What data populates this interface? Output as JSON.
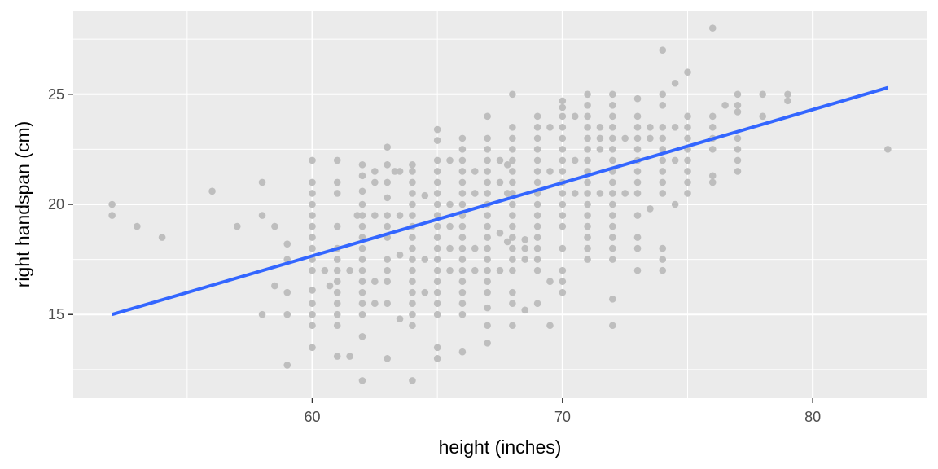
{
  "chart_data": {
    "type": "scatter",
    "title": "",
    "xlabel": "height (inches)",
    "ylabel": "right handspan (cm)",
    "xlim": [
      50.45,
      84.55
    ],
    "ylim": [
      11.2,
      28.8
    ],
    "x_ticks": [
      60,
      70,
      80
    ],
    "x_minor_ticks": [
      55,
      65,
      75
    ],
    "y_ticks": [
      15,
      20,
      25
    ],
    "y_minor_ticks": [
      12.5,
      17.5,
      22.5,
      27.5
    ],
    "grid": true,
    "legend": "none",
    "colors": {
      "panel": "#EBEBEB",
      "grid": "#FFFFFF",
      "points": "#BEBEBE",
      "fit_line": "#3366FF"
    },
    "fit_line": {
      "x": [
        52,
        83
      ],
      "y": [
        15.0,
        25.3
      ]
    },
    "points": [
      [
        52,
        20.0
      ],
      [
        52,
        19.5
      ],
      [
        53,
        19.0
      ],
      [
        54,
        18.5
      ],
      [
        56,
        20.6
      ],
      [
        57,
        19.0
      ],
      [
        58,
        21.0
      ],
      [
        58,
        19.5
      ],
      [
        58,
        15.0
      ],
      [
        58.5,
        19.0
      ],
      [
        58.5,
        16.3
      ],
      [
        59,
        18.2
      ],
      [
        59,
        17.5
      ],
      [
        59,
        16.0
      ],
      [
        59,
        15.0
      ],
      [
        59,
        12.7
      ],
      [
        60,
        22.0
      ],
      [
        60,
        21.0
      ],
      [
        60,
        20.5
      ],
      [
        60,
        20.0
      ],
      [
        60,
        19.5
      ],
      [
        60,
        19.0
      ],
      [
        60,
        18.5
      ],
      [
        60,
        18.0
      ],
      [
        60,
        17.5
      ],
      [
        60,
        17.0
      ],
      [
        60,
        16.1
      ],
      [
        60,
        15.5
      ],
      [
        60,
        15.0
      ],
      [
        60,
        14.5
      ],
      [
        60,
        13.5
      ],
      [
        60.5,
        17.0
      ],
      [
        60.7,
        16.3
      ],
      [
        61,
        22.0
      ],
      [
        61,
        21.0
      ],
      [
        61,
        20.5
      ],
      [
        61,
        19.0
      ],
      [
        61,
        18.0
      ],
      [
        61,
        17.5
      ],
      [
        61,
        17.0
      ],
      [
        61,
        16.5
      ],
      [
        61,
        16.0
      ],
      [
        61,
        15.5
      ],
      [
        61,
        15.0
      ],
      [
        61,
        14.5
      ],
      [
        61,
        13.1
      ],
      [
        61.5,
        17.0
      ],
      [
        61.5,
        13.1
      ],
      [
        61.8,
        19.5
      ],
      [
        62,
        21.8
      ],
      [
        62,
        21.3
      ],
      [
        62,
        20.6
      ],
      [
        62,
        20.0
      ],
      [
        62,
        19.5
      ],
      [
        62,
        19.0
      ],
      [
        62,
        18.5
      ],
      [
        62,
        18.0
      ],
      [
        62,
        17.5
      ],
      [
        62,
        17.0
      ],
      [
        62,
        16.5
      ],
      [
        62,
        16.0
      ],
      [
        62,
        15.5
      ],
      [
        62,
        15.0
      ],
      [
        62,
        14.0
      ],
      [
        62,
        12.0
      ],
      [
        62.5,
        21.5
      ],
      [
        62.5,
        21.0
      ],
      [
        62.5,
        19.5
      ],
      [
        62.5,
        16.5
      ],
      [
        62.5,
        15.5
      ],
      [
        63,
        22.6
      ],
      [
        63,
        21.8
      ],
      [
        63,
        21.0
      ],
      [
        63,
        20.3
      ],
      [
        63,
        19.5
      ],
      [
        63,
        19.0
      ],
      [
        63,
        18.5
      ],
      [
        63,
        17.5
      ],
      [
        63,
        17.0
      ],
      [
        63,
        16.5
      ],
      [
        63,
        15.5
      ],
      [
        63,
        13.0
      ],
      [
        63.3,
        21.5
      ],
      [
        63.5,
        21.5
      ],
      [
        63.5,
        19.5
      ],
      [
        63.5,
        17.7
      ],
      [
        63.5,
        14.8
      ],
      [
        64,
        21.8
      ],
      [
        64,
        21.5
      ],
      [
        64,
        21.0
      ],
      [
        64,
        20.5
      ],
      [
        64,
        20.0
      ],
      [
        64,
        19.5
      ],
      [
        64,
        19.0
      ],
      [
        64,
        18.5
      ],
      [
        64,
        18.0
      ],
      [
        64,
        17.5
      ],
      [
        64,
        17.0
      ],
      [
        64,
        16.5
      ],
      [
        64,
        16.0
      ],
      [
        64,
        15.5
      ],
      [
        64,
        15.0
      ],
      [
        64,
        14.5
      ],
      [
        64,
        12.0
      ],
      [
        64.5,
        20.4
      ],
      [
        64.5,
        17.5
      ],
      [
        64.5,
        16.0
      ],
      [
        65,
        23.4
      ],
      [
        65,
        22.9
      ],
      [
        65,
        22.0
      ],
      [
        65,
        21.5
      ],
      [
        65,
        21.0
      ],
      [
        65,
        20.5
      ],
      [
        65,
        20.0
      ],
      [
        65,
        19.5
      ],
      [
        65,
        19.0
      ],
      [
        65,
        18.5
      ],
      [
        65,
        18.0
      ],
      [
        65,
        17.5
      ],
      [
        65,
        17.0
      ],
      [
        65,
        16.5
      ],
      [
        65,
        16.0
      ],
      [
        65,
        15.5
      ],
      [
        65,
        15.0
      ],
      [
        65,
        13.5
      ],
      [
        65,
        13.0
      ],
      [
        65.5,
        22.0
      ],
      [
        65.5,
        20.0
      ],
      [
        65.5,
        19.0
      ],
      [
        65.5,
        18.0
      ],
      [
        65.5,
        17.0
      ],
      [
        66,
        23.0
      ],
      [
        66,
        22.5
      ],
      [
        66,
        22.0
      ],
      [
        66,
        21.5
      ],
      [
        66,
        21.0
      ],
      [
        66,
        20.5
      ],
      [
        66,
        20.0
      ],
      [
        66,
        19.5
      ],
      [
        66,
        19.0
      ],
      [
        66,
        18.5
      ],
      [
        66,
        18.0
      ],
      [
        66,
        17.5
      ],
      [
        66,
        17.0
      ],
      [
        66,
        16.5
      ],
      [
        66,
        16.0
      ],
      [
        66,
        15.5
      ],
      [
        66,
        15.0
      ],
      [
        66,
        13.3
      ],
      [
        66.5,
        21.5
      ],
      [
        66.5,
        20.5
      ],
      [
        66.5,
        18.0
      ],
      [
        66.5,
        17.0
      ],
      [
        67,
        24.0
      ],
      [
        67,
        23.0
      ],
      [
        67,
        22.5
      ],
      [
        67,
        22.0
      ],
      [
        67,
        21.5
      ],
      [
        67,
        21.0
      ],
      [
        67,
        20.5
      ],
      [
        67,
        20.0
      ],
      [
        67,
        19.5
      ],
      [
        67,
        19.0
      ],
      [
        67,
        18.5
      ],
      [
        67,
        18.0
      ],
      [
        67,
        17.5
      ],
      [
        67,
        17.0
      ],
      [
        67,
        16.5
      ],
      [
        67,
        16.0
      ],
      [
        67,
        15.3
      ],
      [
        67,
        14.5
      ],
      [
        67,
        13.7
      ],
      [
        67.5,
        22.0
      ],
      [
        67.5,
        21.0
      ],
      [
        67.5,
        18.7
      ],
      [
        67.5,
        17.0
      ],
      [
        67.8,
        21.8
      ],
      [
        67.8,
        20.5
      ],
      [
        67.8,
        18.3
      ],
      [
        68,
        25.0
      ],
      [
        68,
        23.5
      ],
      [
        68,
        23.0
      ],
      [
        68,
        22.5
      ],
      [
        68,
        22.0
      ],
      [
        68,
        21.5
      ],
      [
        68,
        21.0
      ],
      [
        68,
        20.5
      ],
      [
        68,
        20.0
      ],
      [
        68,
        19.5
      ],
      [
        68,
        19.0
      ],
      [
        68,
        18.5
      ],
      [
        68,
        18.0
      ],
      [
        68,
        17.5
      ],
      [
        68,
        17.0
      ],
      [
        68,
        16.0
      ],
      [
        68,
        15.5
      ],
      [
        68,
        14.5
      ],
      [
        68.5,
        18.4
      ],
      [
        68.5,
        18.0
      ],
      [
        68.5,
        17.5
      ],
      [
        68.5,
        15.2
      ],
      [
        69,
        24.0
      ],
      [
        69,
        23.5
      ],
      [
        69,
        23.0
      ],
      [
        69,
        22.5
      ],
      [
        69,
        22.0
      ],
      [
        69,
        21.5
      ],
      [
        69,
        21.0
      ],
      [
        69,
        20.5
      ],
      [
        69,
        20.0
      ],
      [
        69,
        19.5
      ],
      [
        69,
        19.0
      ],
      [
        69,
        18.5
      ],
      [
        69,
        18.0
      ],
      [
        69,
        17.5
      ],
      [
        69,
        17.0
      ],
      [
        69,
        15.5
      ],
      [
        69.5,
        23.5
      ],
      [
        69.5,
        21.5
      ],
      [
        69.5,
        16.5
      ],
      [
        69.5,
        14.5
      ],
      [
        70,
        24.7
      ],
      [
        70,
        24.4
      ],
      [
        70,
        24.0
      ],
      [
        70,
        23.5
      ],
      [
        70,
        23.0
      ],
      [
        70,
        22.5
      ],
      [
        70,
        22.0
      ],
      [
        70,
        21.5
      ],
      [
        70,
        21.0
      ],
      [
        70,
        20.5
      ],
      [
        70,
        20.0
      ],
      [
        70,
        19.5
      ],
      [
        70,
        19.0
      ],
      [
        70,
        18.0
      ],
      [
        70,
        17.0
      ],
      [
        70,
        16.5
      ],
      [
        70,
        16.0
      ],
      [
        70.5,
        24.0
      ],
      [
        70.5,
        22.0
      ],
      [
        70.5,
        20.5
      ],
      [
        71,
        25.0
      ],
      [
        71,
        24.5
      ],
      [
        71,
        24.0
      ],
      [
        71,
        23.5
      ],
      [
        71,
        23.0
      ],
      [
        71,
        22.5
      ],
      [
        71,
        22.0
      ],
      [
        71,
        21.5
      ],
      [
        71,
        21.0
      ],
      [
        71,
        20.5
      ],
      [
        71,
        20.0
      ],
      [
        71,
        19.5
      ],
      [
        71,
        19.0
      ],
      [
        71,
        18.5
      ],
      [
        71,
        18.0
      ],
      [
        71,
        17.5
      ],
      [
        71.5,
        23.5
      ],
      [
        71.5,
        23.0
      ],
      [
        71.5,
        22.5
      ],
      [
        71.5,
        20.5
      ],
      [
        72,
        25.0
      ],
      [
        72,
        24.5
      ],
      [
        72,
        24.0
      ],
      [
        72,
        23.5
      ],
      [
        72,
        23.0
      ],
      [
        72,
        22.5
      ],
      [
        72,
        22.0
      ],
      [
        72,
        21.5
      ],
      [
        72,
        21.0
      ],
      [
        72,
        20.5
      ],
      [
        72,
        20.0
      ],
      [
        72,
        19.5
      ],
      [
        72,
        19.0
      ],
      [
        72,
        18.5
      ],
      [
        72,
        18.0
      ],
      [
        72,
        17.5
      ],
      [
        72,
        15.7
      ],
      [
        72,
        14.5
      ],
      [
        72.5,
        23.0
      ],
      [
        72.5,
        20.5
      ],
      [
        73,
        24.8
      ],
      [
        73,
        24.0
      ],
      [
        73,
        23.5
      ],
      [
        73,
        23.0
      ],
      [
        73,
        22.5
      ],
      [
        73,
        22.0
      ],
      [
        73,
        21.5
      ],
      [
        73,
        21.0
      ],
      [
        73,
        20.5
      ],
      [
        73,
        19.5
      ],
      [
        73,
        18.5
      ],
      [
        73,
        18.0
      ],
      [
        73,
        17.0
      ],
      [
        73.5,
        23.5
      ],
      [
        73.5,
        23.0
      ],
      [
        73.5,
        19.8
      ],
      [
        74,
        27.0
      ],
      [
        74,
        25.0
      ],
      [
        74,
        24.5
      ],
      [
        74,
        23.5
      ],
      [
        74,
        23.0
      ],
      [
        74,
        22.5
      ],
      [
        74,
        22.0
      ],
      [
        74,
        21.5
      ],
      [
        74,
        21.0
      ],
      [
        74,
        20.5
      ],
      [
        74,
        18.0
      ],
      [
        74,
        17.5
      ],
      [
        74,
        17.0
      ],
      [
        74.5,
        25.5
      ],
      [
        74.5,
        23.5
      ],
      [
        74.5,
        22.0
      ],
      [
        74.5,
        20.0
      ],
      [
        75,
        26.0
      ],
      [
        75,
        24.0
      ],
      [
        75,
        23.5
      ],
      [
        75,
        23.0
      ],
      [
        75,
        22.5
      ],
      [
        75,
        22.0
      ],
      [
        75,
        21.5
      ],
      [
        75,
        21.0
      ],
      [
        75,
        20.5
      ],
      [
        76,
        28.0
      ],
      [
        76,
        24.0
      ],
      [
        76,
        23.5
      ],
      [
        76,
        23.0
      ],
      [
        76,
        22.5
      ],
      [
        76,
        21.3
      ],
      [
        76,
        21.0
      ],
      [
        76.5,
        24.5
      ],
      [
        77,
        25.0
      ],
      [
        77,
        24.5
      ],
      [
        77,
        24.2
      ],
      [
        77,
        23.0
      ],
      [
        77,
        22.5
      ],
      [
        77,
        22.0
      ],
      [
        77,
        21.5
      ],
      [
        78,
        25.0
      ],
      [
        78,
        24.0
      ],
      [
        79,
        25.0
      ],
      [
        79,
        24.7
      ],
      [
        83,
        22.5
      ]
    ]
  }
}
